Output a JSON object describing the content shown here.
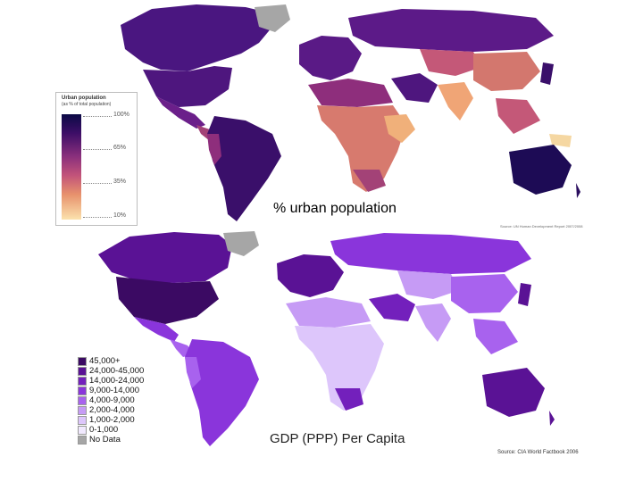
{
  "top_map": {
    "caption": "% urban population",
    "legend_title": "Urban population",
    "legend_subtitle": "(as % of total population)",
    "legend_ticks": [
      "100%",
      "65%",
      "35%",
      "10%"
    ],
    "source": "Source: UN Human Development Report 2007/2008"
  },
  "bottom_map": {
    "caption": "GDP (PPP) Per Capita",
    "source": "Source: CIA World Factbook 2006",
    "legend": [
      {
        "label": "45,000+",
        "color": "#3b0a63"
      },
      {
        "label": "24,000-45,000",
        "color": "#5a1295"
      },
      {
        "label": "14,000-24,000",
        "color": "#7320bc"
      },
      {
        "label": "9,000-14,000",
        "color": "#8a35db"
      },
      {
        "label": "4,000-9,000",
        "color": "#a862ee"
      },
      {
        "label": "2,000-4,000",
        "color": "#c69bf5"
      },
      {
        "label": "1,000-2,000",
        "color": "#ddc6fb"
      },
      {
        "label": "0-1,000",
        "color": "#f1e9fe"
      },
      {
        "label": "No Data",
        "color": "#a6a6a6"
      }
    ]
  },
  "colors": {
    "urban_high": "#1a0b4d",
    "urban_mid": "#8a2f7c",
    "urban_low": "#f5c28c",
    "no_data": "#a6a6a6"
  }
}
